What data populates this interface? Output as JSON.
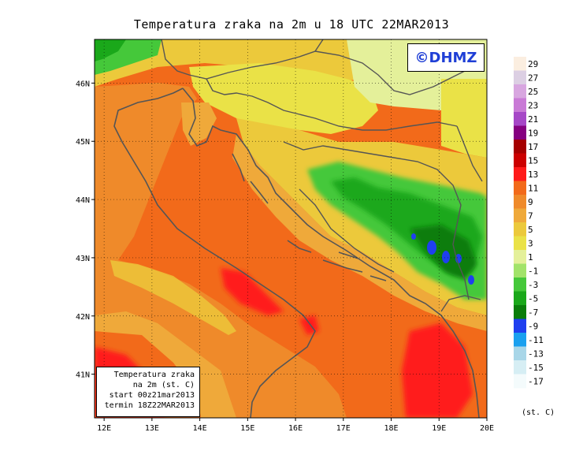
{
  "title": "Temperatura zraka na 2m u 18 UTC 22MAR2013",
  "copyright": "©DHMZ",
  "infobox": {
    "line1": "Temperatura zraka",
    "line2": "na 2m (st. C)",
    "line3": "start 00z21mar2013",
    "line4": "termin 18Z22MAR2013"
  },
  "map": {
    "lon_range": [
      11.8,
      20.0
    ],
    "lat_range": [
      40.25,
      46.75
    ],
    "lon_ticks": [
      "12E",
      "13E",
      "14E",
      "15E",
      "16E",
      "17E",
      "18E",
      "19E",
      "20E"
    ],
    "lat_ticks": [
      "41N",
      "42N",
      "43N",
      "44N",
      "45N",
      "46N"
    ],
    "grid": true
  },
  "legend": {
    "unit": "(st. C)",
    "labels": [
      "29",
      "27",
      "25",
      "23",
      "21",
      "19",
      "17",
      "15",
      "13",
      "11",
      "9",
      "7",
      "5",
      "3",
      "1",
      "-1",
      "-3",
      "-5",
      "-7",
      "-9",
      "-11",
      "-13",
      "-15",
      "-17"
    ],
    "colors": [
      "#fbeee0",
      "#dccfe3",
      "#d8a6e0",
      "#c97ad6",
      "#a647c7",
      "#850080",
      "#a50000",
      "#cc0000",
      "#ff1a1a",
      "#f26a1a",
      "#ef8a2a",
      "#efa93a",
      "#ecc93b",
      "#eae247",
      "#e4f09a",
      "#a2e36a",
      "#45c83a",
      "#1aa81a",
      "#0a7d0a",
      "#1f3fef",
      "#1aa0ef",
      "#a8d6e8",
      "#d6eef4",
      "#f4fbfc"
    ]
  }
}
